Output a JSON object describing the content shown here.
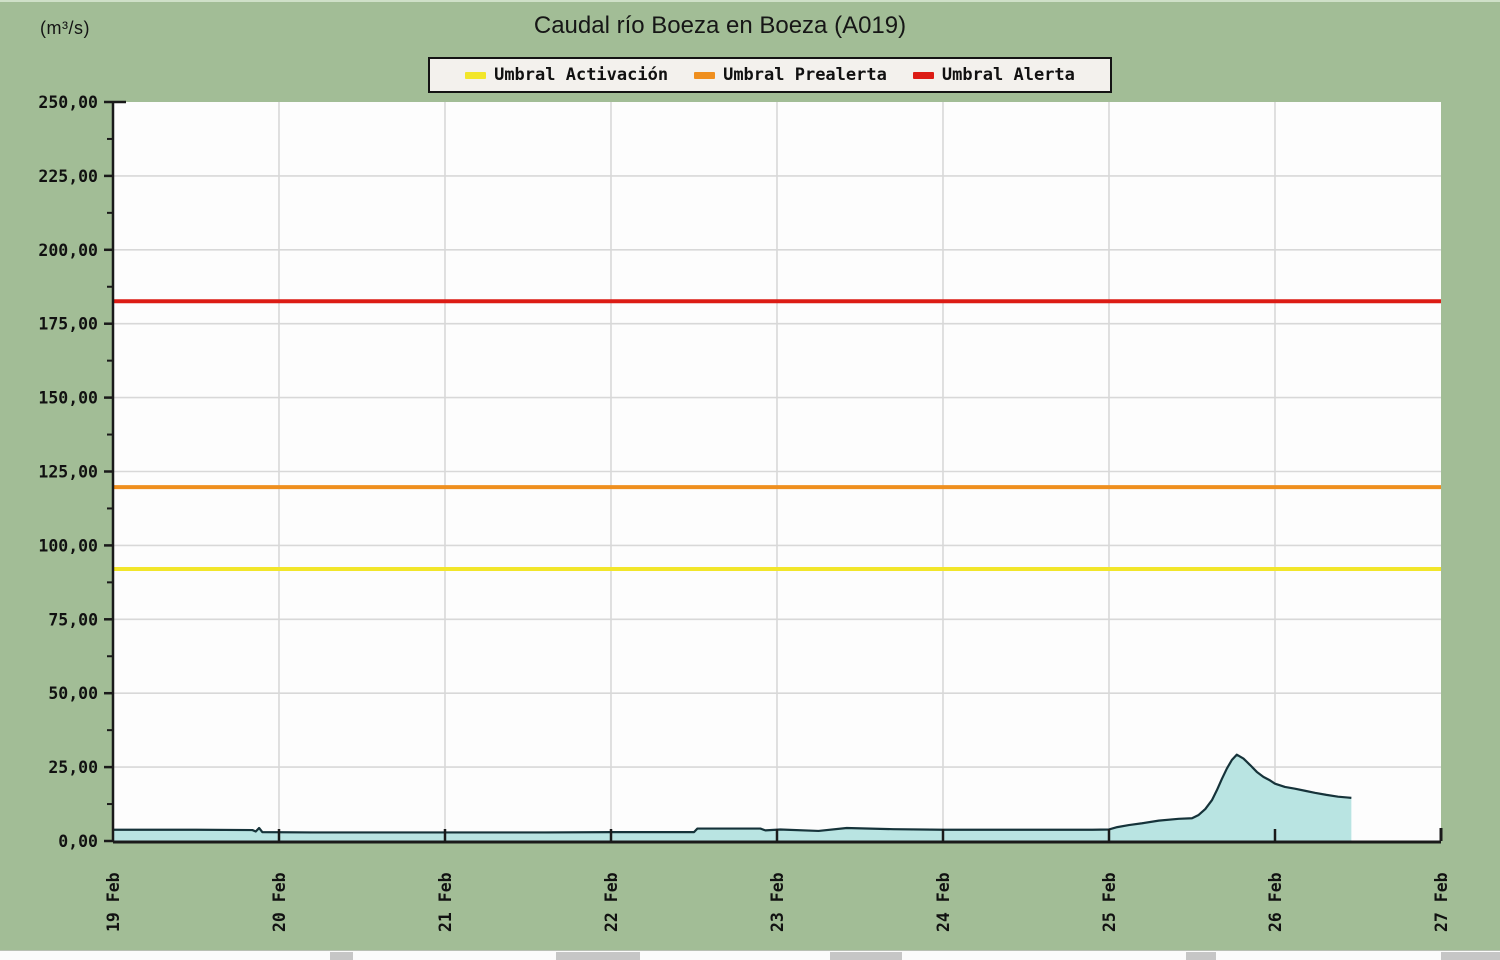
{
  "chart_data": {
    "type": "area",
    "title": "Caudal río Boeza en Boeza  (A019)",
    "unit_label": "(m³/s)",
    "x_axis": {
      "tick_labels": [
        "19 Feb",
        "20 Feb",
        "21 Feb",
        "22 Feb",
        "23 Feb",
        "24 Feb",
        "25 Feb",
        "26 Feb",
        "27 Feb"
      ],
      "range_days": [
        0,
        8
      ],
      "grid": true
    },
    "y_axis": {
      "min": 0,
      "max": 250,
      "major_step": 25,
      "minor_step": 12.5,
      "tick_labels": [
        "0,00",
        "25,00",
        "50,00",
        "75,00",
        "100,00",
        "125,00",
        "150,00",
        "175,00",
        "200,00",
        "225,00",
        "250,00"
      ],
      "grid": true
    },
    "thresholds": [
      {
        "label": "Umbral Activación",
        "value": 92,
        "color": "#f2e62a"
      },
      {
        "label": "Umbral Prealerta",
        "value": 119.7,
        "color": "#ef8f1e"
      },
      {
        "label": "Umbral Alerta",
        "value": 182.6,
        "color": "#dc1c15"
      }
    ],
    "series": [
      {
        "fill": "#b9e4e2",
        "stroke": "#16333a",
        "points": [
          [
            0.0,
            3.8
          ],
          [
            0.5,
            3.8
          ],
          [
            0.84,
            3.7
          ],
          [
            0.86,
            3.2
          ],
          [
            0.88,
            4.4
          ],
          [
            0.9,
            3.0
          ],
          [
            1.2,
            2.9
          ],
          [
            2.0,
            2.9
          ],
          [
            2.6,
            2.9
          ],
          [
            3.0,
            3.0
          ],
          [
            3.5,
            3.0
          ],
          [
            3.52,
            4.2
          ],
          [
            3.9,
            4.2
          ],
          [
            3.93,
            3.6
          ],
          [
            4.02,
            3.9
          ],
          [
            4.25,
            3.4
          ],
          [
            4.42,
            4.4
          ],
          [
            4.7,
            4.0
          ],
          [
            5.0,
            3.8
          ],
          [
            5.5,
            3.8
          ],
          [
            5.9,
            3.8
          ],
          [
            6.0,
            3.9
          ],
          [
            6.05,
            4.7
          ],
          [
            6.12,
            5.4
          ],
          [
            6.2,
            6.0
          ],
          [
            6.3,
            6.9
          ],
          [
            6.42,
            7.5
          ],
          [
            6.5,
            7.7
          ],
          [
            6.54,
            8.8
          ],
          [
            6.58,
            10.8
          ],
          [
            6.62,
            13.8
          ],
          [
            6.65,
            17.2
          ],
          [
            6.68,
            21.0
          ],
          [
            6.71,
            24.5
          ],
          [
            6.74,
            27.4
          ],
          [
            6.77,
            29.2
          ],
          [
            6.81,
            27.9
          ],
          [
            6.85,
            25.7
          ],
          [
            6.89,
            23.4
          ],
          [
            6.93,
            21.7
          ],
          [
            6.97,
            20.5
          ],
          [
            7.0,
            19.4
          ],
          [
            7.06,
            18.3
          ],
          [
            7.12,
            17.7
          ],
          [
            7.18,
            17.0
          ],
          [
            7.24,
            16.3
          ],
          [
            7.31,
            15.6
          ],
          [
            7.38,
            15.0
          ],
          [
            7.44,
            14.7
          ],
          [
            7.46,
            14.6
          ]
        ]
      }
    ],
    "colors": {
      "background": "#a2bd96",
      "plot_background": "#fdfdfd",
      "grid": "#d8d8d8",
      "axis": "#1a1a1a"
    },
    "legend_position": "top-center"
  }
}
